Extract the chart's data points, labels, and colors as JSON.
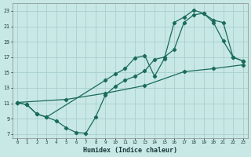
{
  "xlabel": "Humidex (Indice chaleur)",
  "bg_color": "#c8e8e5",
  "grid_color": "#a8d0ce",
  "line_color": "#1a6b5a",
  "xlim": [
    -0.5,
    23.5
  ],
  "ylim": [
    6.5,
    24.0
  ],
  "xticks": [
    0,
    1,
    2,
    3,
    4,
    5,
    6,
    7,
    8,
    9,
    10,
    11,
    12,
    13,
    14,
    15,
    16,
    17,
    18,
    19,
    20,
    21,
    22,
    23
  ],
  "yticks": [
    7,
    9,
    11,
    13,
    15,
    17,
    19,
    21,
    23
  ],
  "line1_x": [
    0,
    1,
    2,
    3,
    4,
    5,
    6,
    7,
    8,
    9,
    10,
    11,
    12,
    13,
    14,
    15,
    16,
    17,
    18,
    19,
    20,
    21,
    22,
    23
  ],
  "line1_y": [
    11.1,
    10.8,
    9.6,
    9.2,
    8.7,
    7.8,
    7.2,
    7.1,
    9.2,
    12.1,
    13.2,
    14.0,
    14.5,
    15.2,
    16.7,
    17.0,
    18.0,
    21.5,
    22.5,
    22.7,
    21.5,
    19.1,
    17.0,
    16.5
  ],
  "line2_x": [
    0,
    1,
    2,
    3,
    9,
    10,
    11,
    12,
    13,
    14,
    15,
    16,
    17,
    18,
    19,
    20,
    21,
    22,
    23
  ],
  "line2_y": [
    11.1,
    10.8,
    9.6,
    9.2,
    14.0,
    14.8,
    15.5,
    16.9,
    17.2,
    14.5,
    16.8,
    21.5,
    22.2,
    23.1,
    22.7,
    21.8,
    21.5,
    17.0,
    16.5
  ],
  "line3_x": [
    0,
    5,
    9,
    13,
    17,
    20,
    23
  ],
  "line3_y": [
    11.1,
    11.5,
    12.3,
    13.3,
    15.1,
    15.5,
    16.0
  ]
}
